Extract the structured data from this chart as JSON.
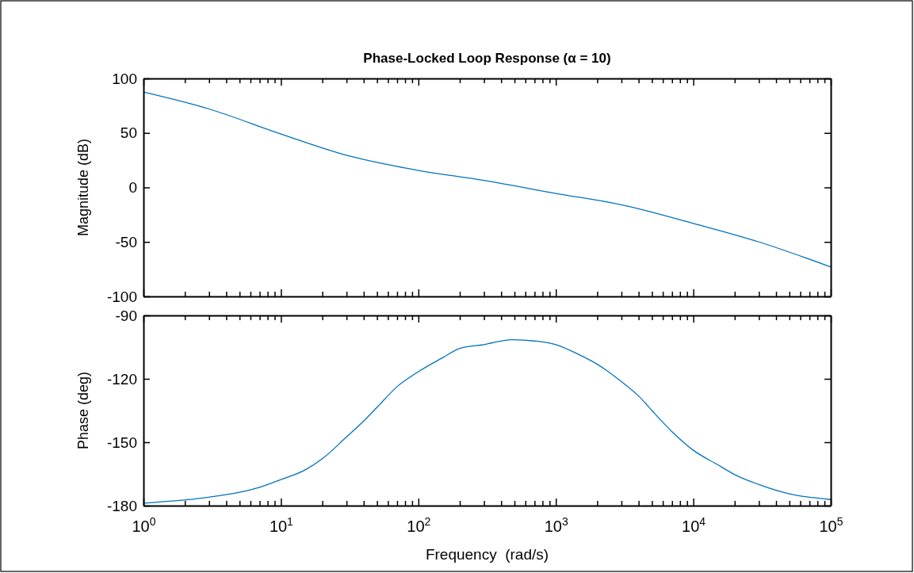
{
  "chart_data": [
    {
      "type": "line",
      "title": "Phase-Locked Loop Response (α = 10)",
      "ylabel": "Magnitude (dB)",
      "log": "x",
      "xlim": [
        1,
        100000
      ],
      "ylim": [
        -100,
        100
      ],
      "yticks": [
        -100,
        -50,
        0,
        50,
        100
      ],
      "xticks": [
        {
          "value": 1,
          "label": null
        },
        {
          "value": 2,
          "label": null
        },
        {
          "value": 3,
          "label": null
        },
        {
          "value": 4,
          "label": null
        },
        {
          "value": 5,
          "label": null
        },
        {
          "value": 6,
          "label": null
        },
        {
          "value": 7,
          "label": null
        },
        {
          "value": 8,
          "label": null
        },
        {
          "value": 9,
          "label": null
        },
        {
          "value": 10,
          "label": null
        },
        {
          "value": 20,
          "label": null
        },
        {
          "value": 30,
          "label": null
        },
        {
          "value": 40,
          "label": null
        },
        {
          "value": 50,
          "label": null
        },
        {
          "value": 60,
          "label": null
        },
        {
          "value": 70,
          "label": null
        },
        {
          "value": 80,
          "label": null
        },
        {
          "value": 90,
          "label": null
        },
        {
          "value": 100,
          "label": null
        },
        {
          "value": 200,
          "label": null
        },
        {
          "value": 300,
          "label": null
        },
        {
          "value": 400,
          "label": null
        },
        {
          "value": 500,
          "label": null
        },
        {
          "value": 600,
          "label": null
        },
        {
          "value": 700,
          "label": null
        },
        {
          "value": 800,
          "label": null
        },
        {
          "value": 900,
          "label": null
        },
        {
          "value": 1000,
          "label": null
        },
        {
          "value": 2000,
          "label": null
        },
        {
          "value": 3000,
          "label": null
        },
        {
          "value": 4000,
          "label": null
        },
        {
          "value": 5000,
          "label": null
        },
        {
          "value": 6000,
          "label": null
        },
        {
          "value": 7000,
          "label": null
        },
        {
          "value": 8000,
          "label": null
        },
        {
          "value": 9000,
          "label": null
        },
        {
          "value": 10000,
          "label": null
        },
        {
          "value": 20000,
          "label": null
        },
        {
          "value": 30000,
          "label": null
        },
        {
          "value": 40000,
          "label": null
        },
        {
          "value": 50000,
          "label": null
        },
        {
          "value": 60000,
          "label": null
        },
        {
          "value": 70000,
          "label": null
        },
        {
          "value": 80000,
          "label": null
        },
        {
          "value": 90000,
          "label": null
        },
        {
          "value": 100000,
          "label": null
        }
      ],
      "tick_labels": "y",
      "grid": false,
      "series": [
        {
          "color": "#0072bd",
          "x": [
            1,
            3,
            10,
            30,
            100,
            300,
            1000,
            3000,
            10000,
            30000,
            100000
          ],
          "values": [
            87.5,
            72,
            49,
            29.5,
            15.6,
            6.4,
            -5.5,
            -15.9,
            -33,
            -50,
            -73
          ]
        }
      ]
    },
    {
      "type": "line",
      "ylabel": "Phase (deg)",
      "xlabel": "Frequency  (rad/s)",
      "log": "x",
      "xlim": [
        1,
        100000
      ],
      "ylim": [
        -180,
        -90
      ],
      "yticks": [
        -180,
        -150,
        -120,
        -90
      ],
      "xticks": [
        {
          "value": 1,
          "label": "10$^{0}$"
        },
        {
          "value": 2,
          "label": null
        },
        {
          "value": 3,
          "label": null
        },
        {
          "value": 4,
          "label": null
        },
        {
          "value": 5,
          "label": null
        },
        {
          "value": 6,
          "label": null
        },
        {
          "value": 7,
          "label": null
        },
        {
          "value": 8,
          "label": null
        },
        {
          "value": 9,
          "label": null
        },
        {
          "value": 10,
          "label": "10$^{1}$"
        },
        {
          "value": 20,
          "label": null
        },
        {
          "value": 30,
          "label": null
        },
        {
          "value": 40,
          "label": null
        },
        {
          "value": 50,
          "label": null
        },
        {
          "value": 60,
          "label": null
        },
        {
          "value": 70,
          "label": null
        },
        {
          "value": 80,
          "label": null
        },
        {
          "value": 90,
          "label": null
        },
        {
          "value": 100,
          "label": "10$^{2}$"
        },
        {
          "value": 200,
          "label": null
        },
        {
          "value": 300,
          "label": null
        },
        {
          "value": 400,
          "label": null
        },
        {
          "value": 500,
          "label": null
        },
        {
          "value": 600,
          "label": null
        },
        {
          "value": 700,
          "label": null
        },
        {
          "value": 800,
          "label": null
        },
        {
          "value": 900,
          "label": null
        },
        {
          "value": 1000,
          "label": "10$^{3}$"
        },
        {
          "value": 2000,
          "label": null
        },
        {
          "value": 3000,
          "label": null
        },
        {
          "value": 4000,
          "label": null
        },
        {
          "value": 5000,
          "label": null
        },
        {
          "value": 6000,
          "label": null
        },
        {
          "value": 7000,
          "label": null
        },
        {
          "value": 8000,
          "label": null
        },
        {
          "value": 9000,
          "label": null
        },
        {
          "value": 10000,
          "label": "10$^{4}$"
        },
        {
          "value": 20000,
          "label": null
        },
        {
          "value": 30000,
          "label": null
        },
        {
          "value": 40000,
          "label": null
        },
        {
          "value": 50000,
          "label": null
        },
        {
          "value": 60000,
          "label": null
        },
        {
          "value": 70000,
          "label": null
        },
        {
          "value": 80000,
          "label": null
        },
        {
          "value": 90000,
          "label": null
        },
        {
          "value": 100000,
          "label": "10$^{5}$"
        }
      ],
      "grid": false,
      "series": [
        {
          "color": "#0072bd",
          "x": [
            1,
            3,
            5,
            7,
            10,
            15,
            20,
            30,
            40,
            50,
            70,
            100,
            150,
            200,
            300,
            480,
            700,
            1000,
            1500,
            2000,
            3000,
            4000,
            5000,
            7000,
            10000,
            15000,
            20000,
            30000,
            50000,
            100000
          ],
          "values": [
            -178.8,
            -176,
            -173.7,
            -171.3,
            -167.7,
            -163.1,
            -157.8,
            -147.5,
            -140,
            -133.5,
            -123.7,
            -116.6,
            -110,
            -105.6,
            -103.8,
            -101.5,
            -102.1,
            -103.8,
            -108.8,
            -113.1,
            -121.3,
            -128.1,
            -135,
            -145,
            -153.8,
            -160.6,
            -165.3,
            -170,
            -174.4,
            -177.1
          ]
        }
      ]
    }
  ]
}
